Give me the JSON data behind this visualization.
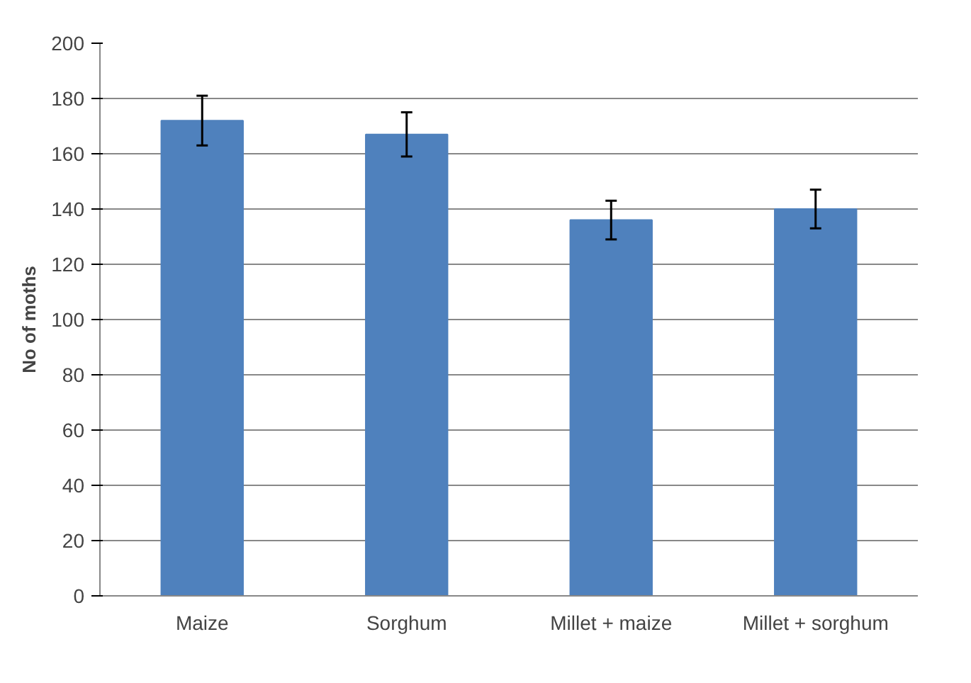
{
  "chart_data": {
    "type": "bar",
    "ylabel": "No of moths",
    "categories": [
      "Maize",
      "Sorghum",
      "Millet + maize",
      "Millet + sorghum"
    ],
    "values": [
      172,
      167,
      136,
      140
    ],
    "errors": [
      9,
      8,
      7,
      7
    ],
    "color": "#4f81bd",
    "ylim": [
      0,
      200
    ],
    "yticks": [
      0,
      20,
      40,
      60,
      80,
      100,
      120,
      140,
      160,
      180,
      200
    ],
    "grid": "y"
  }
}
